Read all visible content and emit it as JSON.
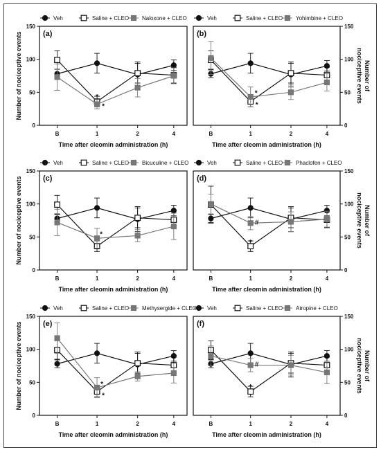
{
  "chart_data": [
    {
      "type": "line",
      "panel_label": "(a)",
      "categories": [
        "B",
        "1",
        "2",
        "4"
      ],
      "xlabel": "Time after cleomin administration (h)",
      "ylabel": "Number of nociceptive events",
      "ylabel_side": "left",
      "ylim": [
        0,
        150
      ],
      "yticks": [
        0,
        50,
        100,
        150
      ],
      "grid": false,
      "series": [
        {
          "name": "Veh",
          "marker": "circle",
          "color": "#111111",
          "values": [
            78,
            94,
            77,
            91
          ],
          "err": [
            7,
            15,
            19,
            8
          ]
        },
        {
          "name": "Saline + CLEO",
          "marker": "open-square",
          "color": "#111111",
          "values": [
            99,
            36,
            79,
            76
          ],
          "err": [
            14,
            8,
            15,
            12
          ]
        },
        {
          "name": "Naloxone + CLEO",
          "marker": "square",
          "color": "#777777",
          "values": [
            73,
            32,
            57,
            75
          ],
          "err": [
            20,
            7,
            14,
            12
          ]
        }
      ],
      "annotations": [
        {
          "x": "1",
          "y": 44,
          "text": "*"
        },
        {
          "x": "1",
          "y": 30,
          "text": "*",
          "dx": 9
        }
      ]
    },
    {
      "type": "line",
      "panel_label": "(b)",
      "categories": [
        "B",
        "1",
        "2",
        "4"
      ],
      "xlabel": "Time after cleomin administration (h)",
      "ylabel": "Number of nociceptive events",
      "ylabel_side": "right",
      "ylim": [
        0,
        150
      ],
      "yticks": [
        0,
        50,
        100,
        150
      ],
      "grid": false,
      "series": [
        {
          "name": "Veh",
          "marker": "circle",
          "color": "#111111",
          "values": [
            78,
            94,
            77,
            90
          ],
          "err": [
            6,
            15,
            19,
            8
          ]
        },
        {
          "name": "Saline + CLEO",
          "marker": "open-square",
          "color": "#111111",
          "values": [
            99,
            36,
            79,
            76
          ],
          "err": [
            14,
            8,
            15,
            12
          ]
        },
        {
          "name": "Yohimbine + CLEO",
          "marker": "square",
          "color": "#777777",
          "values": [
            102,
            43,
            50,
            65
          ],
          "err": [
            25,
            15,
            11,
            13
          ]
        }
      ],
      "annotations": [
        {
          "x": "1",
          "y": 50,
          "text": "*",
          "dx": 8
        },
        {
          "x": "1",
          "y": 32,
          "text": "*",
          "dx": 9
        }
      ]
    },
    {
      "type": "line",
      "panel_label": "(c)",
      "categories": [
        "B",
        "1",
        "2",
        "4"
      ],
      "xlabel": "Time after cleomin administration (h)",
      "ylabel": "Number of nociceptive events",
      "ylabel_side": "left",
      "ylim": [
        0,
        150
      ],
      "yticks": [
        0,
        50,
        100,
        150
      ],
      "grid": false,
      "series": [
        {
          "name": "Veh",
          "marker": "circle",
          "color": "#111111",
          "values": [
            78,
            94,
            77,
            90
          ],
          "err": [
            6,
            15,
            19,
            8
          ]
        },
        {
          "name": "Saline + CLEO",
          "marker": "open-square",
          "color": "#111111",
          "values": [
            99,
            36,
            79,
            76
          ],
          "err": [
            14,
            8,
            15,
            12
          ]
        },
        {
          "name": "Bicuculine + CLEO",
          "marker": "square",
          "color": "#777777",
          "values": [
            72,
            48,
            52,
            66
          ],
          "err": [
            20,
            15,
            9,
            20
          ]
        }
      ],
      "annotations": [
        {
          "x": "1",
          "y": 55,
          "text": "*",
          "dx": 6
        }
      ]
    },
    {
      "type": "line",
      "panel_label": "(d)",
      "categories": [
        "B",
        "1",
        "2",
        "4"
      ],
      "xlabel": "Time after cleomin administration (h)",
      "ylabel": "Number of nociceptive events",
      "ylabel_side": "right",
      "ylim": [
        0,
        150
      ],
      "yticks": [
        0,
        50,
        100,
        150
      ],
      "grid": false,
      "series": [
        {
          "name": "Veh",
          "marker": "circle",
          "color": "#111111",
          "values": [
            78,
            94,
            77,
            90
          ],
          "err": [
            6,
            15,
            19,
            8
          ]
        },
        {
          "name": "Saline + CLEO",
          "marker": "open-square",
          "color": "#111111",
          "values": [
            99,
            36,
            79,
            76
          ],
          "err": [
            28,
            8,
            15,
            12
          ]
        },
        {
          "name": "Phaclofen + CLEO",
          "marker": "square",
          "color": "#777777",
          "values": [
            100,
            71,
            73,
            77
          ],
          "err": [
            15,
            10,
            15,
            12
          ]
        }
      ],
      "annotations": [
        {
          "x": "1",
          "y": 43,
          "text": "*"
        },
        {
          "x": "1",
          "y": 73,
          "text": "#",
          "dx": 9
        }
      ]
    },
    {
      "type": "line",
      "panel_label": "(e)",
      "categories": [
        "B",
        "1",
        "2",
        "4"
      ],
      "xlabel": "Time after cleomin administration (h)",
      "ylabel": "Number of nociceptive events",
      "ylabel_side": "left",
      "ylim": [
        0,
        150
      ],
      "yticks": [
        0,
        50,
        100,
        150
      ],
      "grid": false,
      "series": [
        {
          "name": "Veh",
          "marker": "circle",
          "color": "#111111",
          "values": [
            78,
            94,
            77,
            90
          ],
          "err": [
            6,
            15,
            19,
            8
          ]
        },
        {
          "name": "Saline + CLEO",
          "marker": "open-square",
          "color": "#111111",
          "values": [
            99,
            36,
            79,
            76
          ],
          "err": [
            14,
            8,
            15,
            12
          ]
        },
        {
          "name": "Methysergide + CLEO",
          "marker": "square",
          "color": "#777777",
          "values": [
            117,
            42,
            59,
            64
          ],
          "err": [
            23,
            15,
            7,
            15
          ]
        }
      ],
      "annotations": [
        {
          "x": "1",
          "y": 48,
          "text": "*",
          "dx": 7
        },
        {
          "x": "1",
          "y": 31,
          "text": "*",
          "dx": 9
        }
      ]
    },
    {
      "type": "line",
      "panel_label": "(f)",
      "categories": [
        "B",
        "1",
        "2",
        "4"
      ],
      "xlabel": "Time after cleomin administration (h)",
      "ylabel": "Number of nociceptive events",
      "ylabel_side": "right",
      "ylim": [
        0,
        150
      ],
      "yticks": [
        0,
        50,
        100,
        150
      ],
      "grid": false,
      "series": [
        {
          "name": "Veh",
          "marker": "circle",
          "color": "#111111",
          "values": [
            78,
            94,
            77,
            90
          ],
          "err": [
            6,
            15,
            19,
            8
          ]
        },
        {
          "name": "Saline + CLEO",
          "marker": "open-square",
          "color": "#111111",
          "values": [
            99,
            36,
            79,
            76
          ],
          "err": [
            14,
            8,
            15,
            12
          ]
        },
        {
          "name": "Atropine + CLEO",
          "marker": "square",
          "color": "#777777",
          "values": [
            90,
            76,
            76,
            65
          ],
          "err": [
            15,
            10,
            15,
            17
          ]
        }
      ],
      "annotations": [
        {
          "x": "1",
          "y": 44,
          "text": "*"
        },
        {
          "x": "1",
          "y": 78,
          "text": "#",
          "dx": 9
        }
      ]
    }
  ]
}
